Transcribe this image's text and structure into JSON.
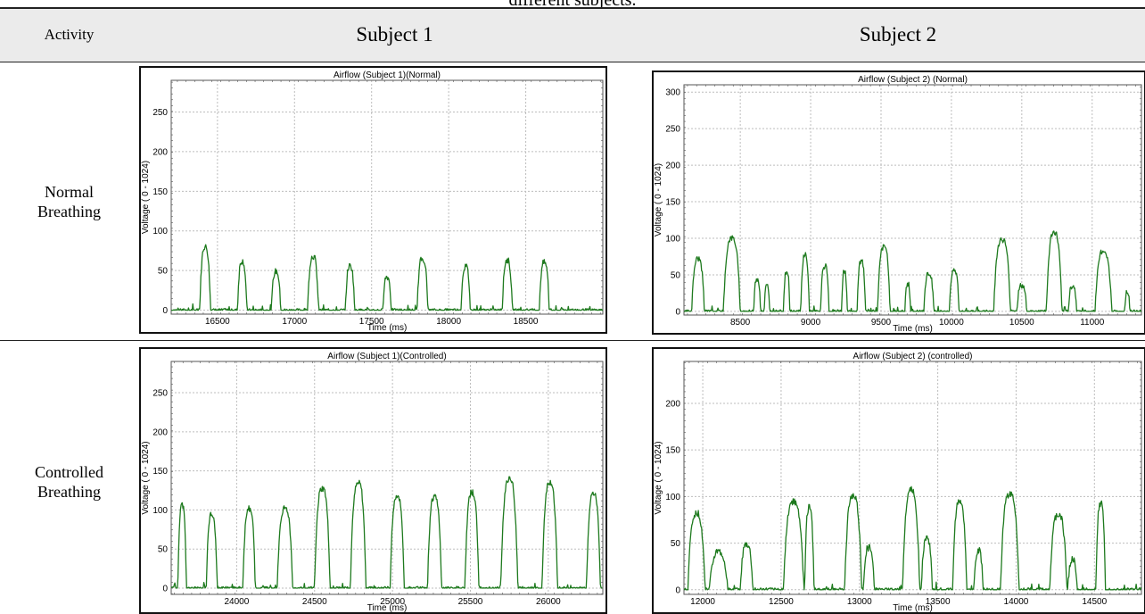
{
  "caption": "different subjects.",
  "table": {
    "headers": {
      "activity": "Activity",
      "subject1": "Subject 1",
      "subject2": "Subject 2"
    },
    "rows": [
      {
        "label_line1": "Normal",
        "label_line2": "Breathing"
      },
      {
        "label_line1": "Controlled",
        "label_line2": "Breathing"
      }
    ]
  },
  "chart_data": [
    {
      "type": "line",
      "title": "Airflow (Subject 1)(Normal)",
      "xlabel": "Time (ms)",
      "ylabel": "Voltage ( 0 - 1024)",
      "xlim": [
        16200,
        19000
      ],
      "ylim": [
        -5,
        290
      ],
      "xticks": [
        16500,
        17000,
        17500,
        18000,
        18500
      ],
      "yticks": [
        0,
        50,
        100,
        150,
        200,
        250
      ],
      "grid": true,
      "color": "#1e7a1e",
      "series": [
        {
          "peaks": [
            {
              "t": 16420,
              "amp": 80,
              "w": 70
            },
            {
              "t": 16660,
              "amp": 62,
              "w": 60
            },
            {
              "t": 16880,
              "amp": 49,
              "w": 60
            },
            {
              "t": 17120,
              "amp": 68,
              "w": 70
            },
            {
              "t": 17360,
              "amp": 56,
              "w": 60
            },
            {
              "t": 17600,
              "amp": 42,
              "w": 55
            },
            {
              "t": 17830,
              "amp": 65,
              "w": 70
            },
            {
              "t": 18110,
              "amp": 55,
              "w": 60
            },
            {
              "t": 18380,
              "amp": 63,
              "w": 65
            },
            {
              "t": 18620,
              "amp": 60,
              "w": 65
            }
          ]
        }
      ]
    },
    {
      "type": "line",
      "title": "Airflow (Subject 2) (Normal)",
      "xlabel": "Time (ms)",
      "ylabel": "Voltage ( 0 - 1024)",
      "xlim": [
        8100,
        11350
      ],
      "ylim": [
        -5,
        310
      ],
      "xticks": [
        8500,
        9000,
        9500,
        10000,
        10500,
        11000
      ],
      "yticks": [
        0,
        50,
        100,
        150,
        200,
        250,
        300
      ],
      "grid": true,
      "color": "#1e7a1e",
      "series": [
        {
          "peaks": [
            {
              "t": 8200,
              "amp": 72,
              "w": 90
            },
            {
              "t": 8440,
              "amp": 100,
              "w": 120
            },
            {
              "t": 8620,
              "amp": 45,
              "w": 50
            },
            {
              "t": 8690,
              "amp": 35,
              "w": 40
            },
            {
              "t": 8830,
              "amp": 55,
              "w": 45
            },
            {
              "t": 8960,
              "amp": 78,
              "w": 60
            },
            {
              "t": 9100,
              "amp": 62,
              "w": 60
            },
            {
              "t": 9240,
              "amp": 55,
              "w": 40
            },
            {
              "t": 9360,
              "amp": 68,
              "w": 60
            },
            {
              "t": 9520,
              "amp": 88,
              "w": 90
            },
            {
              "t": 9690,
              "amp": 38,
              "w": 40
            },
            {
              "t": 9840,
              "amp": 52,
              "w": 70
            },
            {
              "t": 10020,
              "amp": 55,
              "w": 70
            },
            {
              "t": 10360,
              "amp": 98,
              "w": 120
            },
            {
              "t": 10500,
              "amp": 35,
              "w": 70
            },
            {
              "t": 10730,
              "amp": 108,
              "w": 110
            },
            {
              "t": 10860,
              "amp": 35,
              "w": 60
            },
            {
              "t": 11080,
              "amp": 82,
              "w": 120
            },
            {
              "t": 11250,
              "amp": 28,
              "w": 35
            }
          ]
        }
      ]
    },
    {
      "type": "line",
      "title": "Airflow (Subject 1)(Controlled)",
      "xlabel": "Time (ms)",
      "ylabel": "Voltage ( 0 - 1024)",
      "xlim": [
        23580,
        26350
      ],
      "ylim": [
        -8,
        290
      ],
      "xticks": [
        24000,
        24500,
        25000,
        25500,
        26000
      ],
      "yticks": [
        0,
        50,
        100,
        150,
        200,
        250
      ],
      "grid": true,
      "color": "#1e7a1e",
      "series": [
        {
          "peaks": [
            {
              "t": 23650,
              "amp": 106,
              "w": 55
            },
            {
              "t": 23840,
              "amp": 95,
              "w": 70
            },
            {
              "t": 24080,
              "amp": 102,
              "w": 80
            },
            {
              "t": 24310,
              "amp": 102,
              "w": 100
            },
            {
              "t": 24550,
              "amp": 127,
              "w": 100
            },
            {
              "t": 24780,
              "amp": 135,
              "w": 100
            },
            {
              "t": 25030,
              "amp": 118,
              "w": 90
            },
            {
              "t": 25270,
              "amp": 117,
              "w": 90
            },
            {
              "t": 25510,
              "amp": 122,
              "w": 90
            },
            {
              "t": 25750,
              "amp": 140,
              "w": 110
            },
            {
              "t": 26010,
              "amp": 135,
              "w": 100
            },
            {
              "t": 26290,
              "amp": 120,
              "w": 90
            }
          ]
        }
      ]
    },
    {
      "type": "line",
      "title": "Airflow (Subject 2) (controlled)",
      "xlabel": "Time (ms)",
      "ylabel": "Voltage ( 0 - 1024)",
      "xlim": [
        11880,
        14800
      ],
      "ylim": [
        -5,
        245
      ],
      "xticks": [
        12000,
        12500,
        13000,
        13500,
        14000,
        14500
      ],
      "yticks": [
        0,
        50,
        100,
        150,
        200
      ],
      "grid": true,
      "color": "#1e7a1e",
      "series": [
        {
          "peaks": [
            {
              "t": 11960,
              "amp": 82,
              "w": 110
            },
            {
              "t": 12100,
              "amp": 40,
              "w": 120
            },
            {
              "t": 12280,
              "amp": 48,
              "w": 80
            },
            {
              "t": 12580,
              "amp": 95,
              "w": 130
            },
            {
              "t": 12680,
              "amp": 88,
              "w": 60
            },
            {
              "t": 12960,
              "amp": 100,
              "w": 110
            },
            {
              "t": 13060,
              "amp": 45,
              "w": 70
            },
            {
              "t": 13330,
              "amp": 108,
              "w": 110
            },
            {
              "t": 13430,
              "amp": 55,
              "w": 70
            },
            {
              "t": 13640,
              "amp": 95,
              "w": 90
            },
            {
              "t": 13760,
              "amp": 42,
              "w": 60
            },
            {
              "t": 13960,
              "amp": 102,
              "w": 120
            },
            {
              "t": 14270,
              "amp": 80,
              "w": 110
            },
            {
              "t": 14360,
              "amp": 32,
              "w": 60
            },
            {
              "t": 14540,
              "amp": 93,
              "w": 60
            }
          ]
        }
      ]
    }
  ]
}
